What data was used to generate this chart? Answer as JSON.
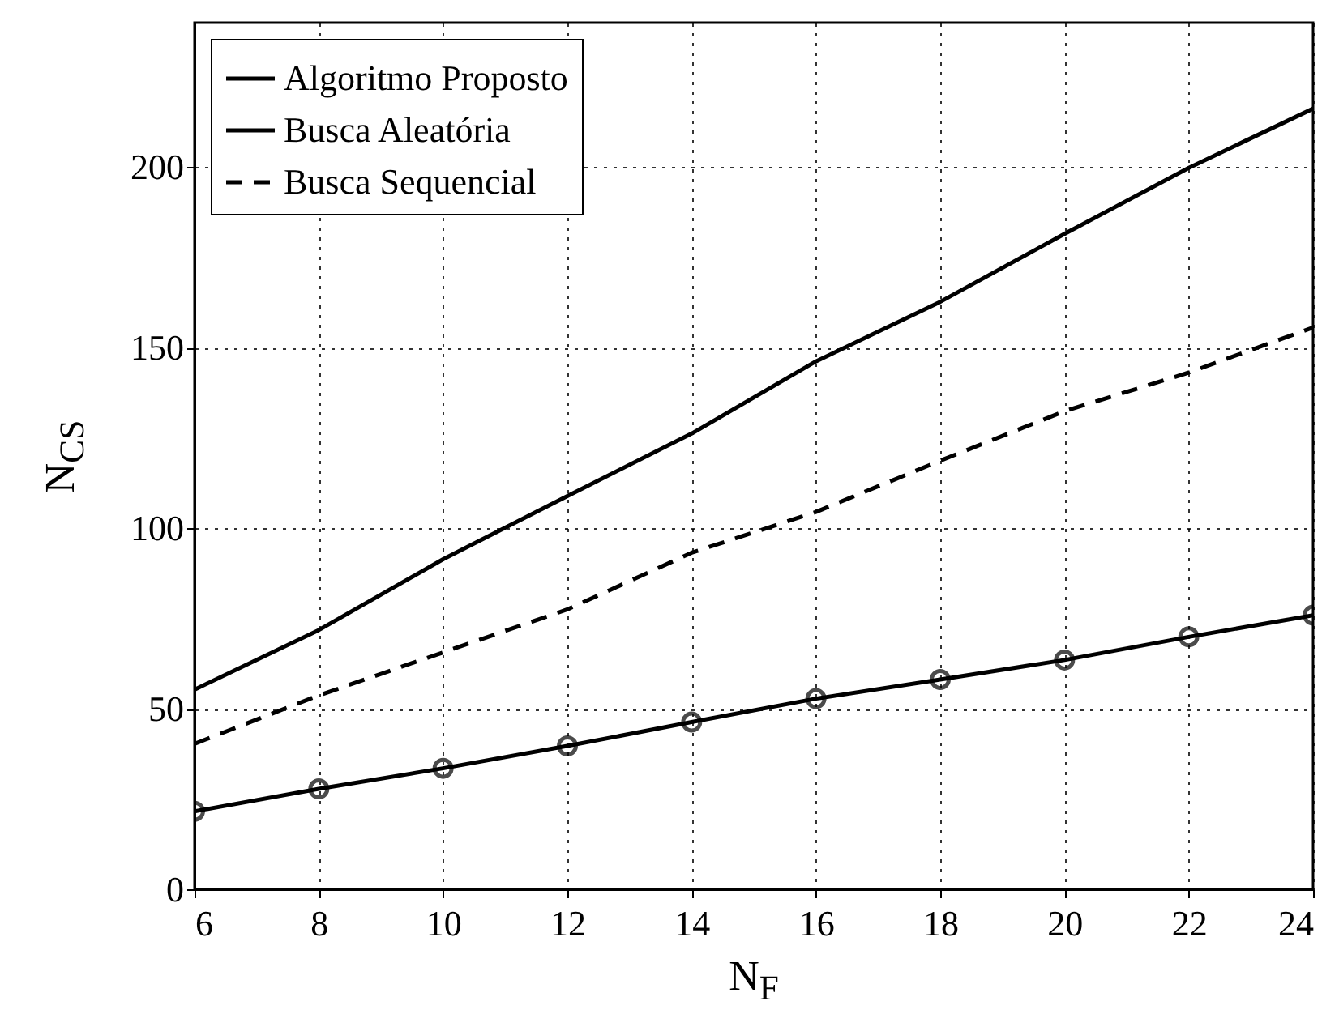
{
  "chart_data": {
    "type": "line",
    "xlabel": "N$_{F}$",
    "ylabel": "N$_{CS}$",
    "x": [
      6,
      8,
      10,
      12,
      14,
      16,
      18,
      20,
      22,
      24
    ],
    "xlim": [
      6,
      24
    ],
    "xticks": [
      6,
      8,
      10,
      12,
      14,
      16,
      18,
      20,
      22,
      24
    ],
    "ylim": [
      0,
      240
    ],
    "yticks": [
      0,
      50,
      100,
      150,
      200
    ],
    "grid": true,
    "legend": "top left",
    "series": [
      {
        "name": "Algoritmo Proposto",
        "color": "#000000",
        "marker": "circle",
        "line_style": "solid",
        "values": [
          21.6,
          27.8,
          33.5,
          39.7,
          46.3,
          52.8,
          58.1,
          63.5,
          69.9,
          75.9
        ]
      },
      {
        "name": "Busca Aleatória",
        "color": "#000000",
        "line_style": "solid",
        "values": [
          55.3,
          71.8,
          91.4,
          108.9,
          126.2,
          146.2,
          162.7,
          181.5,
          199.8,
          216.2
        ]
      },
      {
        "name": "Busca Sequencial",
        "color": "#000000",
        "line_style": "dashed",
        "values": [
          40.3,
          53.7,
          65.6,
          77.5,
          93.2,
          104.5,
          118.7,
          132.4,
          143.1,
          155.6
        ]
      }
    ]
  }
}
